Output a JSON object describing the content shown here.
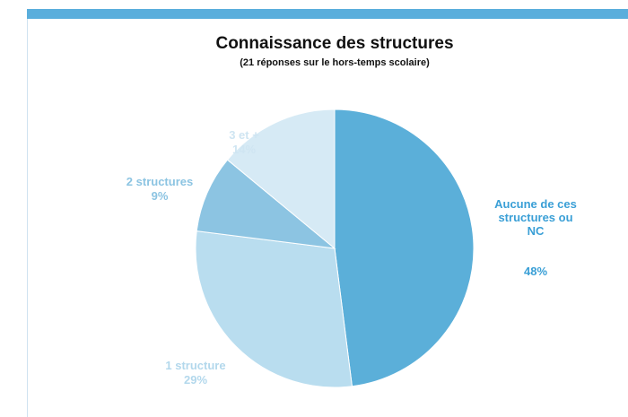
{
  "chart_data": {
    "type": "pie",
    "title": "Connaissance des structures",
    "subtitle": "(21 réponses sur le hors-temps scolaire)",
    "categories": [
      "Aucune de ces structures ou NC",
      "1 structure",
      "2 structures",
      "3 et +"
    ],
    "values": [
      48,
      29,
      9,
      14
    ],
    "value_labels": [
      "48%",
      "29%",
      "9%",
      "14%"
    ],
    "colors": [
      "#5bafd9",
      "#b9ddef",
      "#8cc4e2",
      "#d6eaf5"
    ]
  }
}
